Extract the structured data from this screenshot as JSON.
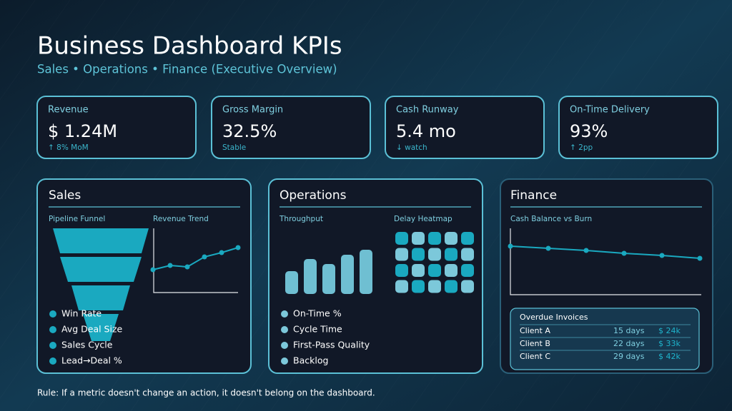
{
  "header": {
    "title": "Business Dashboard KPIs",
    "subtitle": "Sales • Operations • Finance (Executive Overview)"
  },
  "kpis": [
    {
      "label": "Revenue",
      "value": "$ 1.24M",
      "delta": "↑ 8% MoM"
    },
    {
      "label": "Gross Margin",
      "value": "32.5%",
      "delta": "Stable"
    },
    {
      "label": "Cash Runway",
      "value": "5.4 mo",
      "delta": "↓ watch"
    },
    {
      "label": "On-Time Delivery",
      "value": "93%",
      "delta": "↑ 2pp"
    }
  ],
  "sales": {
    "title": "Sales",
    "funnel_label": "Pipeline Funnel",
    "trend_label": "Revenue Trend",
    "metrics": [
      "Win Rate",
      "Avg Deal Size",
      "Sales Cycle",
      "Lead→Deal %"
    ]
  },
  "operations": {
    "title": "Operations",
    "throughput_label": "Throughput",
    "heatmap_label": "Delay Heatmap",
    "metrics": [
      "On-Time %",
      "Cycle Time",
      "First-Pass Quality",
      "Backlog"
    ]
  },
  "finance": {
    "title": "Finance",
    "chart_label": "Cash Balance vs Burn",
    "invoices": {
      "title": "Overdue Invoices",
      "rows": [
        [
          "Client A",
          "15 days",
          "$ 24k"
        ],
        [
          "Client B",
          "22 days",
          "$ 33k"
        ],
        [
          "Client C",
          "29 days",
          "$ 42k"
        ]
      ]
    }
  },
  "footer": "Rule: If a metric doesn't change an action, it doesn't belong on the dashboard."
}
